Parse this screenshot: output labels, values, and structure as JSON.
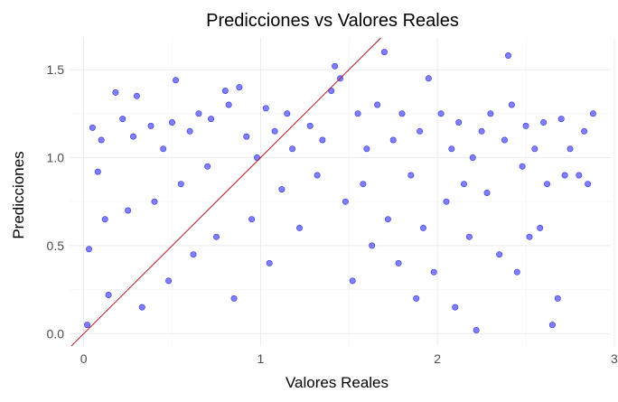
{
  "chart_data": {
    "type": "scatter",
    "title": "Predicciones vs Valores Reales",
    "xlabel": "Valores Reales",
    "ylabel": "Predicciones",
    "xlim": [
      -0.08,
      2.98
    ],
    "ylim": [
      -0.07,
      1.68
    ],
    "x_ticks": [
      0,
      1,
      2,
      3
    ],
    "x_tick_labels": [
      "0",
      "1",
      "2",
      "3"
    ],
    "y_ticks": [
      0.0,
      0.5,
      1.0,
      1.5
    ],
    "y_tick_labels": [
      "0.0",
      "0.5",
      "1.0",
      "1.5"
    ],
    "grid": true,
    "legend": "none",
    "reference_line": {
      "slope": 1,
      "intercept": 0,
      "color": "#b2182b"
    },
    "point_color": "#0000ff",
    "point_opacity": 0.5,
    "series": [
      {
        "values": [
          [
            0.02,
            0.05
          ],
          [
            0.03,
            0.48
          ],
          [
            0.05,
            1.17
          ],
          [
            0.08,
            0.92
          ],
          [
            0.1,
            1.1
          ],
          [
            0.12,
            0.65
          ],
          [
            0.14,
            0.22
          ],
          [
            0.18,
            1.37
          ],
          [
            0.22,
            1.22
          ],
          [
            0.25,
            0.7
          ],
          [
            0.28,
            1.12
          ],
          [
            0.3,
            1.35
          ],
          [
            0.33,
            0.15
          ],
          [
            0.38,
            1.18
          ],
          [
            0.4,
            0.75
          ],
          [
            0.45,
            1.05
          ],
          [
            0.48,
            0.3
          ],
          [
            0.5,
            1.2
          ],
          [
            0.52,
            1.44
          ],
          [
            0.55,
            0.85
          ],
          [
            0.6,
            1.15
          ],
          [
            0.62,
            0.45
          ],
          [
            0.65,
            1.25
          ],
          [
            0.7,
            0.95
          ],
          [
            0.72,
            1.22
          ],
          [
            0.75,
            0.55
          ],
          [
            0.8,
            1.38
          ],
          [
            0.82,
            1.3
          ],
          [
            0.85,
            0.2
          ],
          [
            0.88,
            1.4
          ],
          [
            0.92,
            1.12
          ],
          [
            0.95,
            0.65
          ],
          [
            0.98,
            1.0
          ],
          [
            1.03,
            1.28
          ],
          [
            1.05,
            0.4
          ],
          [
            1.08,
            1.15
          ],
          [
            1.12,
            0.82
          ],
          [
            1.15,
            1.25
          ],
          [
            1.18,
            1.05
          ],
          [
            1.22,
            0.6
          ],
          [
            1.28,
            1.18
          ],
          [
            1.32,
            0.9
          ],
          [
            1.35,
            1.1
          ],
          [
            1.4,
            1.38
          ],
          [
            1.42,
            1.52
          ],
          [
            1.45,
            1.45
          ],
          [
            1.48,
            0.75
          ],
          [
            1.52,
            0.3
          ],
          [
            1.55,
            1.25
          ],
          [
            1.58,
            0.85
          ],
          [
            1.6,
            1.05
          ],
          [
            1.63,
            0.5
          ],
          [
            1.66,
            1.3
          ],
          [
            1.7,
            1.6
          ],
          [
            1.72,
            0.65
          ],
          [
            1.75,
            1.1
          ],
          [
            1.78,
            0.4
          ],
          [
            1.8,
            1.25
          ],
          [
            1.85,
            0.9
          ],
          [
            1.88,
            0.2
          ],
          [
            1.9,
            1.15
          ],
          [
            1.92,
            0.6
          ],
          [
            1.95,
            1.45
          ],
          [
            1.98,
            0.35
          ],
          [
            2.02,
            1.25
          ],
          [
            2.05,
            0.75
          ],
          [
            2.08,
            1.05
          ],
          [
            2.1,
            0.15
          ],
          [
            2.12,
            1.2
          ],
          [
            2.15,
            0.85
          ],
          [
            2.18,
            0.55
          ],
          [
            2.2,
            1.0
          ],
          [
            2.22,
            0.02
          ],
          [
            2.25,
            1.15
          ],
          [
            2.28,
            0.8
          ],
          [
            2.3,
            1.25
          ],
          [
            2.35,
            0.45
          ],
          [
            2.38,
            1.1
          ],
          [
            2.4,
            1.58
          ],
          [
            2.42,
            1.3
          ],
          [
            2.45,
            0.35
          ],
          [
            2.48,
            0.95
          ],
          [
            2.5,
            1.18
          ],
          [
            2.52,
            0.55
          ],
          [
            2.55,
            1.05
          ],
          [
            2.58,
            0.6
          ],
          [
            2.6,
            1.2
          ],
          [
            2.62,
            0.85
          ],
          [
            2.65,
            0.05
          ],
          [
            2.68,
            0.2
          ],
          [
            2.7,
            1.22
          ],
          [
            2.72,
            0.9
          ],
          [
            2.75,
            1.05
          ],
          [
            2.8,
            0.9
          ],
          [
            2.83,
            1.15
          ],
          [
            2.85,
            0.85
          ],
          [
            2.88,
            1.25
          ]
        ]
      }
    ]
  }
}
